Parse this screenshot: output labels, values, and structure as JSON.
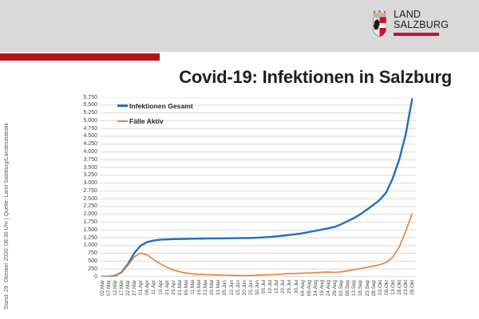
{
  "colors": {
    "band": "#d9d9d9",
    "accent_bar": "#b5121b",
    "logo_red": "#ce0e2d",
    "crest_red": "#c8102e",
    "crest_gold": "#efe9dd",
    "grid": "#d9d9d9",
    "axis_line": "#bfbfbf"
  },
  "header": {
    "logo_line1": "LAND",
    "logo_line2": "SALZBURG",
    "title": "Covid-19: Infektionen in Salzburg"
  },
  "source_note": "Stand: 29. Oktober 2020, 08:30 Uhr  |  Quelle: Land Salzburg/Landesstatistik",
  "chart_data": {
    "type": "line",
    "title": "",
    "xlabel": "",
    "ylabel": "",
    "ylim": [
      0,
      5750
    ],
    "ytick_step": 250,
    "ytick_labels": [
      "0",
      "250",
      "500",
      "750",
      "1.000",
      "1.250",
      "1.500",
      "1.750",
      "2.000",
      "2.250",
      "2.500",
      "2.750",
      "3.000",
      "3.250",
      "3.500",
      "3.750",
      "4.000",
      "4.250",
      "4.500",
      "4.750",
      "5.000",
      "5.250",
      "5.500",
      "5.750"
    ],
    "grid": true,
    "legend_position": "top-left-inside",
    "categories": [
      "02.Mär",
      "07.Mär",
      "12.Mär",
      "17.Mär",
      "22.Mär",
      "27.Mär",
      "01.Apr",
      "06.Apr",
      "11.Apr",
      "16.Apr",
      "21.Apr",
      "26.Apr",
      "01.Mai",
      "06.Mai",
      "11.Mai",
      "16.Mai",
      "21.Mai",
      "26.Mai",
      "31.Mai",
      "05.Jun",
      "10.Jun",
      "15.Jun",
      "20.Jun",
      "25.Jun",
      "30.Jun",
      "05.Jul",
      "10.Jul",
      "15.Jul",
      "20.Jul",
      "25.Jul",
      "30.Jul",
      "04.Aug",
      "09.Aug",
      "14.Aug",
      "19.Aug",
      "24.Aug",
      "29.Aug",
      "03.Sep",
      "08.Sep",
      "13.Sep",
      "18.Sep",
      "23.Sep",
      "28.Sep",
      "03.Okt",
      "08.Okt",
      "13.Okt",
      "18.Okt",
      "23.Okt",
      "28.Okt"
    ],
    "series": [
      {
        "name": "Infektionen Gesamt",
        "color": "#1d70c0",
        "stroke_width": 2.4,
        "values": [
          1,
          2,
          30,
          130,
          400,
          760,
          1000,
          1110,
          1160,
          1185,
          1195,
          1205,
          1210,
          1215,
          1220,
          1222,
          1225,
          1228,
          1230,
          1232,
          1235,
          1238,
          1240,
          1243,
          1250,
          1262,
          1275,
          1295,
          1315,
          1338,
          1362,
          1390,
          1430,
          1470,
          1510,
          1550,
          1595,
          1680,
          1780,
          1880,
          2000,
          2150,
          2300,
          2460,
          2700,
          3150,
          3750,
          4550,
          5690
        ]
      },
      {
        "name": "Fälle Aktiv",
        "color": "#ed7d31",
        "stroke_width": 1.6,
        "values": [
          1,
          2,
          28,
          120,
          360,
          640,
          760,
          700,
          550,
          420,
          310,
          220,
          160,
          120,
          95,
          80,
          70,
          62,
          55,
          50,
          45,
          40,
          38,
          42,
          48,
          55,
          65,
          75,
          90,
          100,
          105,
          112,
          120,
          130,
          145,
          150,
          140,
          155,
          190,
          225,
          260,
          300,
          340,
          385,
          460,
          620,
          950,
          1450,
          2020
        ]
      }
    ]
  }
}
